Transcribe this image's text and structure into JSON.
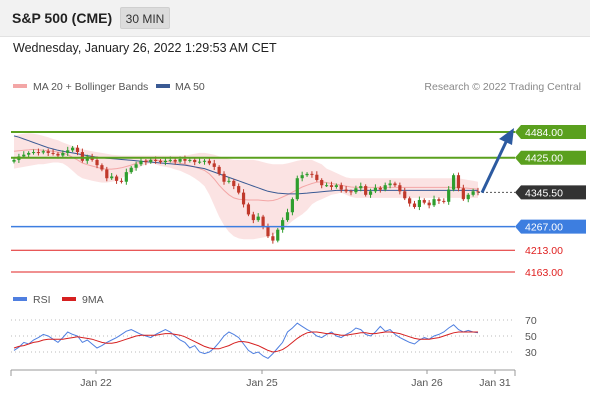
{
  "header": {
    "title": "S&P 500 (CME)",
    "timeframe": "30 MIN"
  },
  "datetime": "Wednesday, January 26, 2022 1:29:53 AM CET",
  "legend": {
    "bollinger": "MA 20 + Bollinger Bands",
    "ma50": "MA 50",
    "credit": "Research © 2022 Trading Central",
    "rsi": "RSI",
    "rsi_ma": "9MA"
  },
  "colors": {
    "up": "#2e9e2e",
    "down": "#c0392b",
    "bollinger": "#f3a6a6",
    "band_fill": "#fbe0e0",
    "ma50": "#3a5a94",
    "resistance": "#5aa01e",
    "support": "#3d7ee0",
    "target": "#e02020",
    "current": "#333333",
    "rsi": "#4f7fe0",
    "rsi_ma": "#d62020"
  },
  "chart_data": [
    {
      "type": "candlestick",
      "x_ticks": [
        "Jan 22",
        "Jan 25",
        "Jan 26",
        "Jan 31"
      ],
      "ylim": [
        4140,
        4520
      ],
      "current_price": "4345.50",
      "levels": [
        {
          "value": 4484,
          "label": "4484.00",
          "kind": "resistance"
        },
        {
          "value": 4425,
          "label": "4425.00",
          "kind": "resistance"
        },
        {
          "value": 4267,
          "label": "4267.00",
          "kind": "support"
        },
        {
          "value": 4213,
          "label": "4213.00",
          "kind": "target"
        },
        {
          "value": 4163,
          "label": "4163.00",
          "kind": "target"
        }
      ],
      "forecast": {
        "from": 4345,
        "to": 4484
      },
      "close_series": [
        4420,
        4428,
        4432,
        4436,
        4438,
        4437,
        4440,
        4436,
        4434,
        4430,
        4436,
        4442,
        4448,
        4438,
        4418,
        4428,
        4420,
        4408,
        4398,
        4378,
        4382,
        4372,
        4370,
        4392,
        4402,
        4410,
        4418,
        4415,
        4420,
        4418,
        4415,
        4418,
        4420,
        4416,
        4422,
        4418,
        4420,
        4415,
        4416,
        4418,
        4412,
        4404,
        4388,
        4370,
        4372,
        4360,
        4345,
        4318,
        4295,
        4282,
        4290,
        4268,
        4245,
        4235,
        4260,
        4282,
        4300,
        4330,
        4378,
        4385,
        4388,
        4386,
        4374,
        4362,
        4362,
        4358,
        4362,
        4352,
        4348,
        4346,
        4355,
        4360,
        4340,
        4348,
        4356,
        4352,
        4362,
        4366,
        4362,
        4348,
        4332,
        4320,
        4312,
        4328,
        4322,
        4316,
        4330,
        4326,
        4324,
        4352,
        4385,
        4355,
        4330,
        4340,
        4348,
        4346
      ],
      "bb_upper": [
        4475,
        4478,
        4480,
        4481,
        4480,
        4478,
        4475,
        4472,
        4468,
        4465,
        4460,
        4456,
        4452,
        4448,
        4444,
        4442,
        4440,
        4438,
        4436,
        4434,
        4432,
        4431,
        4430,
        4430,
        4430,
        4430,
        4430,
        4430,
        4430,
        4430,
        4430,
        4430,
        4430,
        4430,
        4430,
        4430,
        4432,
        4434,
        4436,
        4436,
        4434,
        4432,
        4428,
        4425,
        4422,
        4420,
        4420,
        4420,
        4420,
        4420,
        4418,
        4415,
        4412,
        4410,
        4410,
        4410,
        4412,
        4415,
        4418,
        4420,
        4420,
        4420,
        4415,
        4410,
        4400,
        4395,
        4390,
        4385,
        4380,
        4378,
        4378,
        4378,
        4378,
        4378,
        4378,
        4378,
        4378,
        4378,
        4378,
        4378,
        4378,
        4378,
        4378,
        4378,
        4378,
        4378,
        4378,
        4378,
        4378,
        4378,
        4378,
        4378,
        4376,
        4374,
        4372,
        4370
      ],
      "bb_lower": [
        4400,
        4402,
        4404,
        4406,
        4408,
        4410,
        4410,
        4412,
        4414,
        4414,
        4412,
        4405,
        4395,
        4385,
        4378,
        4375,
        4372,
        4370,
        4368,
        4368,
        4370,
        4372,
        4378,
        4384,
        4390,
        4398,
        4405,
        4410,
        4412,
        4410,
        4406,
        4404,
        4402,
        4398,
        4395,
        4390,
        4385,
        4378,
        4370,
        4360,
        4340,
        4315,
        4290,
        4270,
        4255,
        4245,
        4240,
        4238,
        4238,
        4238,
        4240,
        4242,
        4245,
        4248,
        4255,
        4262,
        4270,
        4280,
        4288,
        4295,
        4305,
        4318,
        4325,
        4330,
        4335,
        4340,
        4342,
        4345,
        4340,
        4335,
        4333,
        4333,
        4333,
        4333,
        4333,
        4333,
        4333,
        4333,
        4333,
        4333,
        4333,
        4333,
        4333,
        4333,
        4333,
        4333,
        4333,
        4333,
        4333,
        4333,
        4333,
        4333,
        4333,
        4333,
        4333,
        4333
      ],
      "ma20": [
        4440,
        4441,
        4442,
        4443,
        4444,
        4443,
        4442,
        4441,
        4440,
        4438,
        4436,
        4432,
        4426,
        4420,
        4413,
        4409,
        4406,
        4403,
        4400,
        4399,
        4399,
        4400,
        4402,
        4405,
        4408,
        4412,
        4415,
        4418,
        4420,
        4420,
        4418,
        4417,
        4416,
        4414,
        4412,
        4410,
        4407,
        4404,
        4400,
        4396,
        4388,
        4376,
        4362,
        4350,
        4340,
        4333,
        4330,
        4329,
        4328,
        4328,
        4328,
        4327,
        4326,
        4327,
        4330,
        4335,
        4340,
        4346,
        4352,
        4358,
        4362,
        4366,
        4369,
        4370,
        4368,
        4366,
        4364,
        4362,
        4360,
        4358,
        4357,
        4357,
        4357,
        4357,
        4357,
        4357,
        4357,
        4357,
        4357,
        4357,
        4357,
        4357,
        4357,
        4357,
        4357,
        4357,
        4357,
        4357,
        4357,
        4357,
        4357,
        4357,
        4356,
        4355,
        4354,
        4353
      ],
      "ma50": [
        4475,
        4472,
        4468,
        4464,
        4460,
        4456,
        4452,
        4448,
        4445,
        4442,
        4440,
        4438,
        4436,
        4434,
        4432,
        4430,
        4428,
        4426,
        4425,
        4424,
        4423,
        4422,
        4421,
        4420,
        4419,
        4418,
        4417,
        4416,
        4415,
        4414,
        4413,
        4412,
        4411,
        4410,
        4409,
        4408,
        4406,
        4404,
        4402,
        4400,
        4396,
        4392,
        4388,
        4384,
        4380,
        4376,
        4372,
        4368,
        4364,
        4360,
        4356,
        4352,
        4348,
        4346,
        4344,
        4343,
        4342,
        4342,
        4342,
        4343,
        4344,
        4345,
        4346,
        4347,
        4348,
        4349,
        4350,
        4350,
        4350,
        4350,
        4350,
        4350,
        4350,
        4350,
        4350,
        4350,
        4350,
        4350,
        4350,
        4350,
        4350,
        4350,
        4350,
        4350,
        4350,
        4350,
        4350,
        4350,
        4350,
        4350,
        4350,
        4350,
        4350,
        4350,
        4350,
        4350
      ]
    },
    {
      "type": "line",
      "ylim": [
        18,
        82
      ],
      "y_ticks": [
        70,
        50,
        30
      ],
      "rsi": [
        32,
        36,
        42,
        40,
        45,
        48,
        52,
        50,
        46,
        42,
        48,
        55,
        52,
        50,
        42,
        45,
        40,
        35,
        38,
        42,
        45,
        48,
        52,
        56,
        58,
        55,
        52,
        50,
        48,
        52,
        55,
        58,
        55,
        50,
        45,
        42,
        35,
        38,
        30,
        28,
        30,
        35,
        42,
        50,
        55,
        52,
        48,
        40,
        32,
        28,
        30,
        25,
        22,
        28,
        35,
        42,
        55,
        60,
        66,
        62,
        58,
        55,
        50,
        48,
        52,
        55,
        50,
        48,
        52,
        55,
        60,
        58,
        52,
        50,
        55,
        62,
        56,
        58,
        52,
        48,
        45,
        42,
        40,
        45,
        48,
        46,
        50,
        52,
        55,
        60,
        64,
        58,
        55,
        57,
        55,
        54
      ],
      "rsi_ma": [
        35,
        37,
        38,
        40,
        42,
        43,
        45,
        46,
        46,
        46,
        46,
        47,
        48,
        49,
        48,
        47,
        46,
        44,
        42,
        41,
        41,
        42,
        44,
        46,
        48,
        50,
        51,
        51,
        51,
        51,
        52,
        53,
        53,
        52,
        51,
        49,
        46,
        43,
        40,
        37,
        35,
        34,
        34,
        36,
        38,
        41,
        43,
        43,
        42,
        40,
        38,
        35,
        32,
        30,
        31,
        33,
        37,
        42,
        47,
        51,
        54,
        55,
        55,
        54,
        53,
        53,
        52,
        51,
        51,
        52,
        53,
        54,
        54,
        53,
        53,
        54,
        55,
        55,
        54,
        53,
        51,
        49,
        47,
        46,
        46,
        46,
        47,
        48,
        50,
        52,
        54,
        55,
        55,
        55,
        55,
        55
      ]
    }
  ]
}
